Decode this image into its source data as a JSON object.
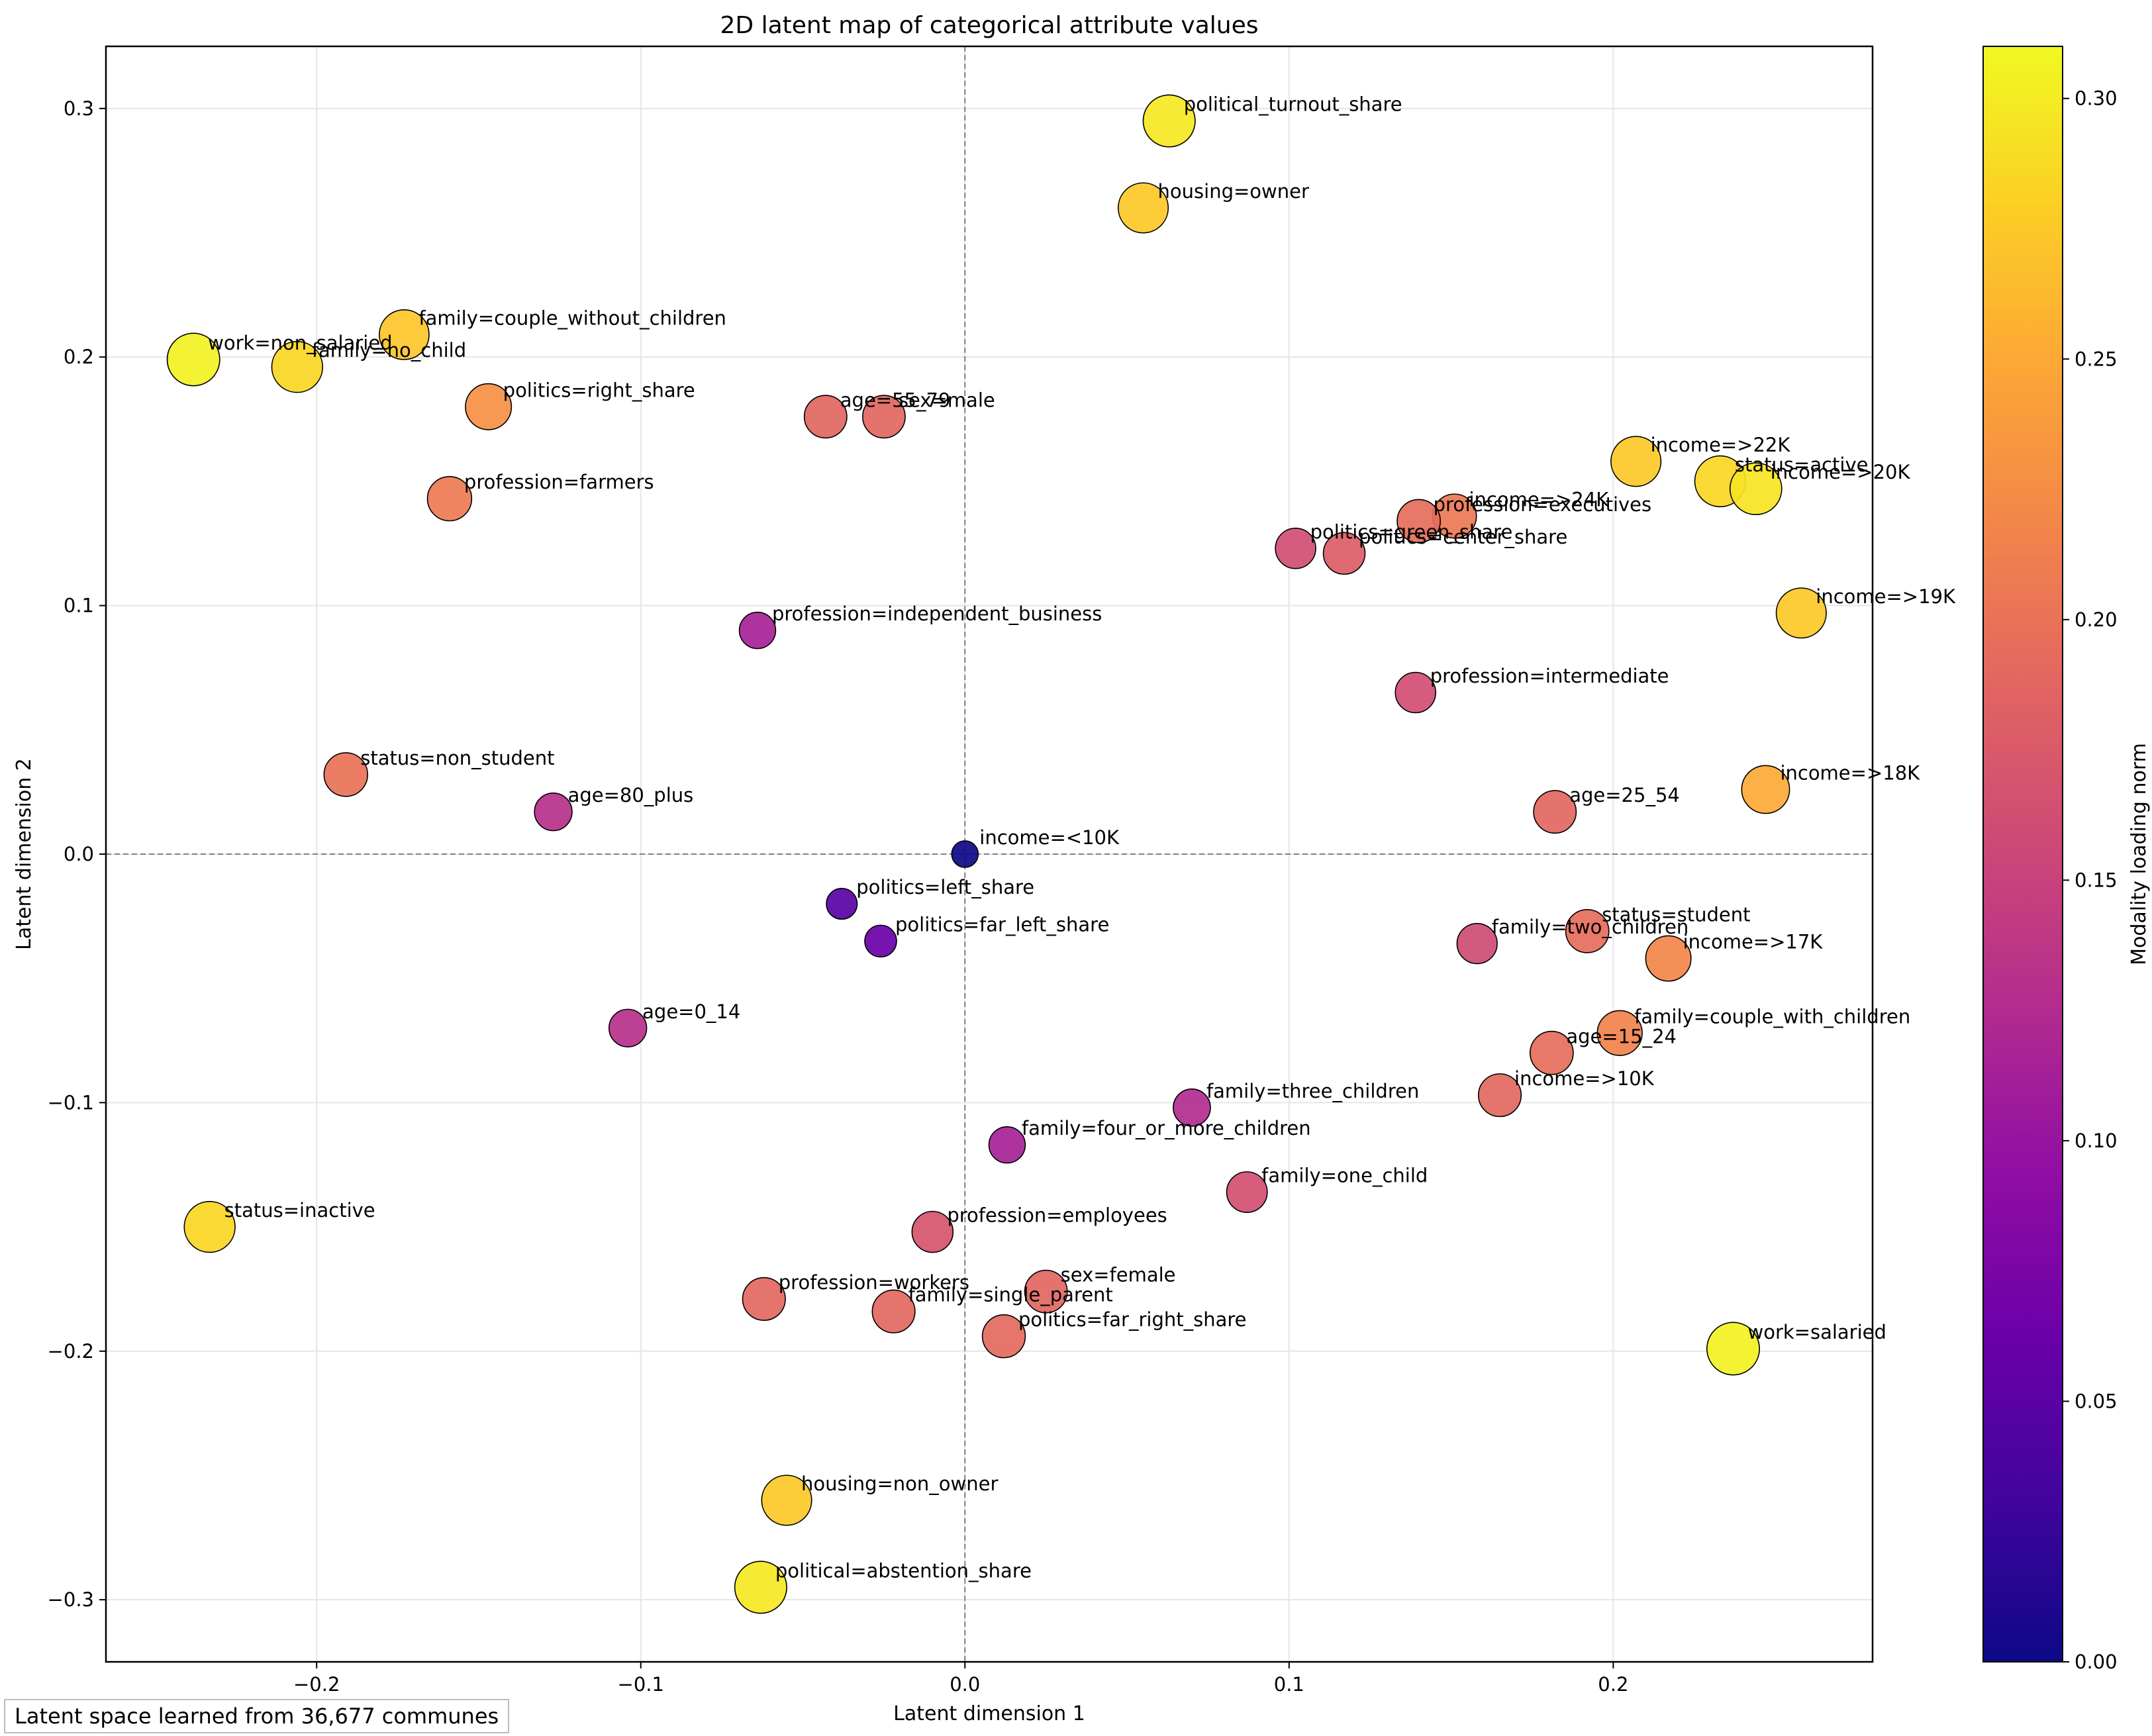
{
  "chart_data": {
    "type": "scatter",
    "title": "2D latent map of categorical attribute values",
    "xlabel": "Latent dimension 1",
    "ylabel": "Latent dimension 2",
    "xlim": [
      -0.265,
      0.28
    ],
    "ylim": [
      -0.325,
      0.325
    ],
    "x_ticks": [
      -0.2,
      -0.1,
      0.0,
      0.1,
      0.2
    ],
    "x_tick_labels": [
      "−0.2",
      "−0.1",
      "0.0",
      "0.1",
      "0.2"
    ],
    "y_ticks": [
      -0.3,
      -0.2,
      -0.1,
      0.0,
      0.1,
      0.2,
      0.3
    ],
    "y_tick_labels": [
      "−0.3",
      "−0.2",
      "−0.1",
      "0.0",
      "0.1",
      "0.2",
      "0.3"
    ],
    "grid": true,
    "reference_lines": {
      "x": 0,
      "y": 0,
      "style": "dashed",
      "color": "#808080"
    },
    "colormap": "plasma",
    "colorbar": {
      "label": "Modality loading norm",
      "range": [
        0.0,
        0.31
      ],
      "ticks": [
        0.0,
        0.05,
        0.1,
        0.15,
        0.2,
        0.25,
        0.3
      ],
      "tick_labels": [
        "0.00",
        "0.05",
        "0.10",
        "0.15",
        "0.20",
        "0.25",
        "0.30"
      ]
    },
    "marker_size_encodes": "Modality loading norm",
    "points": [
      {
        "label": "political_turnout_share",
        "x": 0.063,
        "y": 0.295,
        "value": 0.298
      },
      {
        "label": "housing=owner",
        "x": 0.055,
        "y": 0.26,
        "value": 0.275
      },
      {
        "label": "family=couple_without_children",
        "x": -0.173,
        "y": 0.209,
        "value": 0.272
      },
      {
        "label": "work=non_salaried",
        "x": -0.238,
        "y": 0.199,
        "value": 0.305
      },
      {
        "label": "family=no_child",
        "x": -0.206,
        "y": 0.196,
        "value": 0.285
      },
      {
        "label": "politics=right_share",
        "x": -0.147,
        "y": 0.18,
        "value": 0.228
      },
      {
        "label": "age=55_79",
        "x": -0.043,
        "y": 0.176,
        "value": 0.188
      },
      {
        "label": "sex=male",
        "x": -0.025,
        "y": 0.176,
        "value": 0.188
      },
      {
        "label": "profession=farmers",
        "x": -0.159,
        "y": 0.143,
        "value": 0.208
      },
      {
        "label": "income=>22K",
        "x": 0.207,
        "y": 0.158,
        "value": 0.275
      },
      {
        "label": "status=active",
        "x": 0.233,
        "y": 0.15,
        "value": 0.285
      },
      {
        "label": "income=>20K",
        "x": 0.244,
        "y": 0.147,
        "value": 0.295
      },
      {
        "label": "income=>24K",
        "x": 0.151,
        "y": 0.136,
        "value": 0.205
      },
      {
        "label": "profession=executives",
        "x": 0.14,
        "y": 0.134,
        "value": 0.195
      },
      {
        "label": "politics=green_share",
        "x": 0.102,
        "y": 0.123,
        "value": 0.162
      },
      {
        "label": "politics=center_share",
        "x": 0.117,
        "y": 0.121,
        "value": 0.178
      },
      {
        "label": "income=>19K",
        "x": 0.258,
        "y": 0.097,
        "value": 0.275
      },
      {
        "label": "profession=independent_business",
        "x": -0.064,
        "y": 0.09,
        "value": 0.115
      },
      {
        "label": "profession=intermediate",
        "x": 0.139,
        "y": 0.065,
        "value": 0.162
      },
      {
        "label": "status=non_student",
        "x": -0.191,
        "y": 0.032,
        "value": 0.2
      },
      {
        "label": "age=80_plus",
        "x": -0.127,
        "y": 0.017,
        "value": 0.13
      },
      {
        "label": "age=25_54",
        "x": 0.182,
        "y": 0.017,
        "value": 0.188
      },
      {
        "label": "income=>18K",
        "x": 0.247,
        "y": 0.026,
        "value": 0.25
      },
      {
        "label": "income=<10K",
        "x": 0.0,
        "y": 0.0,
        "value": 0.0
      },
      {
        "label": "politics=left_share",
        "x": -0.038,
        "y": -0.02,
        "value": 0.05
      },
      {
        "label": "politics=far_left_share",
        "x": -0.026,
        "y": -0.035,
        "value": 0.062
      },
      {
        "label": "family=two_children",
        "x": 0.158,
        "y": -0.036,
        "value": 0.16
      },
      {
        "label": "status=student",
        "x": 0.192,
        "y": -0.031,
        "value": 0.195
      },
      {
        "label": "income=>17K",
        "x": 0.217,
        "y": -0.042,
        "value": 0.22
      },
      {
        "label": "age=0_14",
        "x": -0.104,
        "y": -0.07,
        "value": 0.13
      },
      {
        "label": "family=couple_with_children",
        "x": 0.202,
        "y": -0.072,
        "value": 0.215
      },
      {
        "label": "age=15_24",
        "x": 0.181,
        "y": -0.08,
        "value": 0.195
      },
      {
        "label": "income=>10K",
        "x": 0.165,
        "y": -0.097,
        "value": 0.19
      },
      {
        "label": "family=three_children",
        "x": 0.07,
        "y": -0.102,
        "value": 0.125
      },
      {
        "label": "family=four_or_more_children",
        "x": 0.013,
        "y": -0.117,
        "value": 0.115
      },
      {
        "label": "family=one_child",
        "x": 0.087,
        "y": -0.136,
        "value": 0.165
      },
      {
        "label": "status=inactive",
        "x": -0.233,
        "y": -0.15,
        "value": 0.285
      },
      {
        "label": "profession=employees",
        "x": -0.01,
        "y": -0.152,
        "value": 0.17
      },
      {
        "label": "profession=workers",
        "x": -0.062,
        "y": -0.179,
        "value": 0.19
      },
      {
        "label": "sex=female",
        "x": 0.025,
        "y": -0.176,
        "value": 0.188
      },
      {
        "label": "family=single_parent",
        "x": -0.022,
        "y": -0.184,
        "value": 0.19
      },
      {
        "label": "politics=far_right_share",
        "x": 0.012,
        "y": -0.194,
        "value": 0.192
      },
      {
        "label": "work=salaried",
        "x": 0.237,
        "y": -0.199,
        "value": 0.305
      },
      {
        "label": "housing=non_owner",
        "x": -0.055,
        "y": -0.26,
        "value": 0.275
      },
      {
        "label": "political=abstention_share",
        "x": -0.063,
        "y": -0.295,
        "value": 0.298
      }
    ]
  },
  "note": "Latent space learned from 36,677 communes"
}
